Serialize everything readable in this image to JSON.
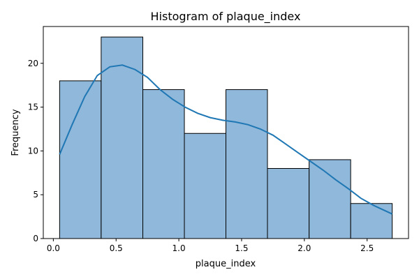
{
  "chart_data": {
    "type": "bar",
    "title": "Histogram of plaque_index",
    "xlabel": "plaque_index",
    "ylabel": "Frequency",
    "bin_edges": [
      0.05,
      0.381,
      0.713,
      1.044,
      1.375,
      1.706,
      2.038,
      2.369,
      2.7
    ],
    "values": [
      18,
      23,
      17,
      12,
      17,
      8,
      9,
      4
    ],
    "xlim": [
      -0.08,
      2.83
    ],
    "ylim": [
      0,
      24.2
    ],
    "xticks": [
      0.0,
      0.5,
      1.0,
      1.5,
      2.0,
      2.5
    ],
    "xtick_labels": [
      "0.0",
      "0.5",
      "1.0",
      "1.5",
      "2.0",
      "2.5"
    ],
    "yticks": [
      0,
      5,
      10,
      15,
      20
    ],
    "ytick_labels": [
      "0",
      "5",
      "10",
      "15",
      "20"
    ],
    "kde": {
      "x": [
        0.05,
        0.15,
        0.25,
        0.35,
        0.45,
        0.55,
        0.65,
        0.75,
        0.85,
        0.95,
        1.05,
        1.15,
        1.25,
        1.35,
        1.45,
        1.55,
        1.65,
        1.75,
        1.85,
        1.95,
        2.05,
        2.15,
        2.25,
        2.35,
        2.45,
        2.55,
        2.7
      ],
      "y": [
        9.6,
        13.0,
        16.2,
        18.6,
        19.6,
        19.8,
        19.3,
        18.4,
        17.0,
        15.9,
        15.0,
        14.3,
        13.8,
        13.5,
        13.3,
        13.0,
        12.5,
        11.8,
        10.8,
        9.8,
        8.8,
        7.8,
        6.7,
        5.7,
        4.6,
        3.8,
        2.8
      ]
    },
    "grid": false,
    "legend": "none",
    "bar_color": "#8fb8da",
    "line_color": "#1f77b4"
  }
}
